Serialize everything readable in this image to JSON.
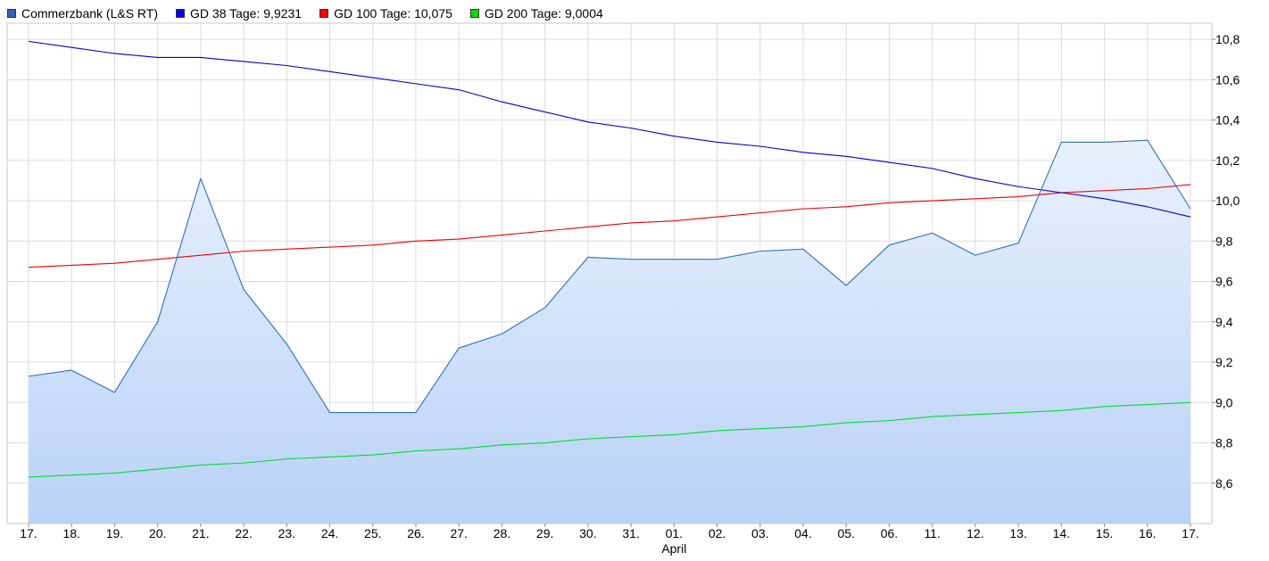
{
  "chart_data": {
    "type": "line",
    "title": "",
    "colors": {
      "main_line": "#2f6fbf",
      "area_top": "#e9f1fd",
      "area_bottom": "#b9d2f7",
      "grid": "#dcdcdc"
    },
    "legend": {
      "placement": "top-left",
      "items": [
        {
          "label": "Commerzbank (L&S RT)",
          "color": "#3563b4"
        },
        {
          "label": "GD 38 Tage: 9,9231",
          "color": "#0000ff"
        },
        {
          "label": "GD 100 Tage: 10,075",
          "color": "#ff0000"
        },
        {
          "label": "GD 200 Tage: 9,0004",
          "color": "#00dd00"
        }
      ]
    },
    "x_tick_labels": [
      "17.",
      "18.",
      "19.",
      "20.",
      "21.",
      "22.",
      "23.",
      "24.",
      "25.",
      "26.",
      "27.",
      "28.",
      "29.",
      "30.",
      "31.",
      "01.",
      "02.",
      "03.",
      "04.",
      "05.",
      "06.",
      "11.",
      "12.",
      "13.",
      "14.",
      "15.",
      "16.",
      "17."
    ],
    "x_month_label": {
      "text": "April",
      "at_index": 15
    },
    "y_axis": {
      "position": "right",
      "ylim": [
        8.4,
        10.88
      ],
      "ticks": [
        "8,6",
        "8,8",
        "9,0",
        "9,2",
        "9,4",
        "9,6",
        "9,8",
        "10,0",
        "10,2",
        "10,4",
        "10,6",
        "10,8"
      ]
    },
    "grid": true,
    "series": [
      {
        "name": "Commerzbank (L&S RT)",
        "color": "#2f6fbf",
        "filled": true,
        "values": [
          9.13,
          9.16,
          9.05,
          9.4,
          10.11,
          9.56,
          9.29,
          8.95,
          8.95,
          8.95,
          9.27,
          9.34,
          9.47,
          9.72,
          9.71,
          9.71,
          9.71,
          9.75,
          9.76,
          9.58,
          9.78,
          9.84,
          9.73,
          9.79,
          10.29,
          10.29,
          10.3,
          9.96
        ]
      },
      {
        "name": "GD 38 Tage: 9,9231",
        "color": "#0000cc",
        "filled": false,
        "values": [
          10.79,
          10.76,
          10.73,
          10.71,
          10.71,
          10.69,
          10.67,
          10.64,
          10.61,
          10.58,
          10.55,
          10.49,
          10.44,
          10.39,
          10.36,
          10.32,
          10.29,
          10.27,
          10.24,
          10.22,
          10.19,
          10.16,
          10.11,
          10.07,
          10.04,
          10.01,
          9.97,
          9.92
        ]
      },
      {
        "name": "GD 100 Tage: 10,075",
        "color": "#ee0000",
        "filled": false,
        "values": [
          9.67,
          9.68,
          9.69,
          9.71,
          9.73,
          9.75,
          9.76,
          9.77,
          9.78,
          9.8,
          9.81,
          9.83,
          9.85,
          9.87,
          9.89,
          9.9,
          9.92,
          9.94,
          9.96,
          9.97,
          9.99,
          10.0,
          10.01,
          10.02,
          10.04,
          10.05,
          10.06,
          10.08
        ]
      },
      {
        "name": "GD 200 Tage: 9,0004",
        "color": "#00dd33",
        "filled": false,
        "values": [
          8.63,
          8.64,
          8.65,
          8.67,
          8.69,
          8.7,
          8.72,
          8.73,
          8.74,
          8.76,
          8.77,
          8.79,
          8.8,
          8.82,
          8.83,
          8.84,
          8.86,
          8.87,
          8.88,
          8.9,
          8.91,
          8.93,
          8.94,
          8.95,
          8.96,
          8.98,
          8.99,
          9.0
        ]
      }
    ]
  }
}
